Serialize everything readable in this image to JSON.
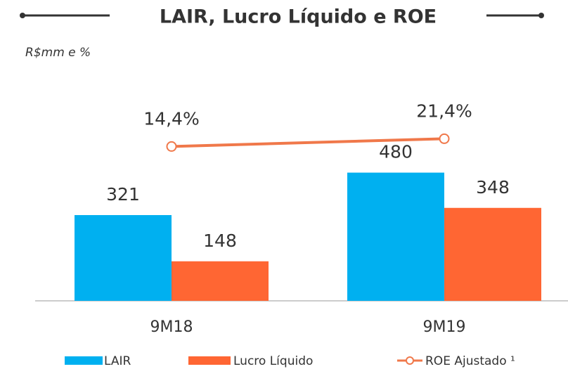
{
  "chart_data": {
    "type": "bar",
    "title": "LAIR, Lucro Líquido e ROE",
    "subtitle": "R$mm e %",
    "categories": [
      "9M18",
      "9M19"
    ],
    "series": [
      {
        "name": "LAIR",
        "color": "#00b0f0",
        "values": [
          321,
          480
        ]
      },
      {
        "name": "Lucro Líquido",
        "color": "#ff6633",
        "values": [
          148,
          348
        ]
      },
      {
        "name": "ROE Ajustado ¹",
        "type": "line",
        "color": "#f0784a",
        "axis": "y2",
        "values": [
          14.4,
          21.4
        ],
        "value_labels": [
          "14,4%",
          "21,4%"
        ]
      }
    ],
    "ylim": [
      0,
      800
    ],
    "y2lim": [
      -125,
      68
    ]
  }
}
